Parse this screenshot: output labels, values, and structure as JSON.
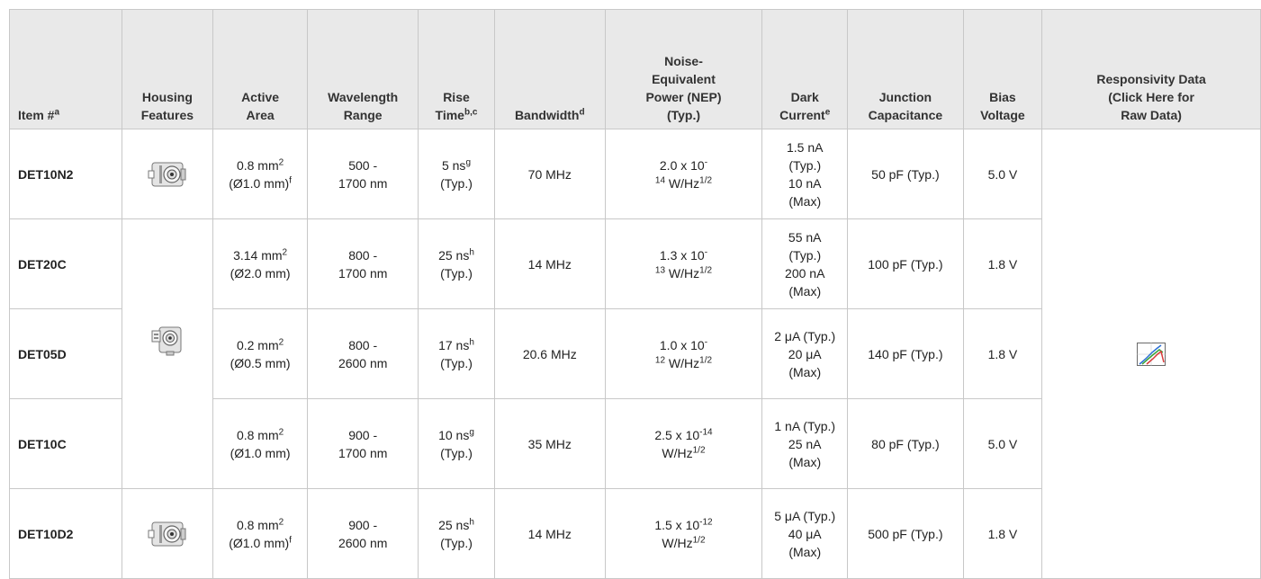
{
  "headers": {
    "item": {
      "text": "Item #",
      "sup": "a"
    },
    "housing": {
      "line1": "Housing",
      "line2": "Features"
    },
    "area": {
      "line1": "Active",
      "line2": "Area"
    },
    "wavelength": {
      "line1": "Wavelength",
      "line2": "Range"
    },
    "rise": {
      "line1": "Rise",
      "line2": "Time",
      "sup": "b,c"
    },
    "bandwidth": {
      "text": "Bandwidth",
      "sup": "d"
    },
    "nep": {
      "line1": "Noise-",
      "line2": "Equivalent",
      "line3": "Power (NEP)",
      "line4": "(Typ.)"
    },
    "dark": {
      "line1": "Dark",
      "line2": "Current",
      "sup": "e"
    },
    "capacitance": {
      "line1": "Junction",
      "line2": "Capacitance"
    },
    "bias": {
      "line1": "Bias",
      "line2": "Voltage"
    },
    "responsivity": {
      "line1": "Responsivity Data",
      "line2": "(Click Here for",
      "line3": "Raw Data)"
    }
  },
  "rows": [
    {
      "item": "DET10N2",
      "area_a": "0.8 mm",
      "area_a_sup": "2",
      "area_b": "(Ø1.0 mm)",
      "area_b_sup": "f",
      "wl_a": "500 -",
      "wl_b": "1700 nm",
      "rise_a": "5 ns",
      "rise_sup": "g",
      "rise_b": "(Typ.)",
      "bandwidth": "70 MHz",
      "nep_a": "2.0 x 10",
      "nep_a_sup": "-",
      "nep_b_pre": "14",
      "nep_b": " W/Hz",
      "nep_b_sup": "1/2",
      "dark_1": "1.5 nA",
      "dark_2": "(Typ.)",
      "dark_3": "10 nA",
      "dark_4": "(Max)",
      "capacitance": "50 pF (Typ.)",
      "bias": "5.0 V"
    },
    {
      "item": "DET20C",
      "area_a": "3.14 mm",
      "area_a_sup": "2",
      "area_b": "(Ø2.0 mm)",
      "wl_a": "800 -",
      "wl_b": "1700 nm",
      "rise_a": "25 ns",
      "rise_sup": "h",
      "rise_b": "(Typ.)",
      "bandwidth": "14 MHz",
      "nep_a": "1.3 x 10",
      "nep_a_sup": "-",
      "nep_b_pre": "13",
      "nep_b": " W/Hz",
      "nep_b_sup": "1/2",
      "dark_1": "55 nA",
      "dark_2": "(Typ.)",
      "dark_3": "200 nA",
      "dark_4": "(Max)",
      "capacitance": "100 pF (Typ.)",
      "bias": "1.8 V"
    },
    {
      "item": "DET05D",
      "area_a": "0.2 mm",
      "area_a_sup": "2",
      "area_b": "(Ø0.5 mm)",
      "wl_a": "800 -",
      "wl_b": "2600 nm",
      "rise_a": "17 ns",
      "rise_sup": "h",
      "rise_b": "(Typ.)",
      "bandwidth": "20.6 MHz",
      "nep_a": "1.0 x 10",
      "nep_a_sup": "-",
      "nep_b_pre": "12",
      "nep_b": " W/Hz",
      "nep_b_sup": "1/2",
      "dark_1": "2 μA (Typ.)",
      "dark_2": "20 μA",
      "dark_3": "(Max)",
      "capacitance": "140 pF (Typ.)",
      "bias": "1.8 V"
    },
    {
      "item": "DET10C",
      "area_a": "0.8 mm",
      "area_a_sup": "2",
      "area_b": "(Ø1.0 mm)",
      "wl_a": "900 -",
      "wl_b": "1700 nm",
      "rise_a": "10 ns",
      "rise_sup": "g",
      "rise_b": "(Typ.)",
      "bandwidth": "35 MHz",
      "nep_a": "2.5 x 10",
      "nep_a_sup": "-14",
      "nep_b": "W/Hz",
      "nep_b_sup": "1/2",
      "dark_1": "1 nA (Typ.)",
      "dark_2": "25 nA",
      "dark_3": "(Max)",
      "capacitance": "80 pF (Typ.)",
      "bias": "5.0 V"
    },
    {
      "item": "DET10D2",
      "area_a": "0.8 mm",
      "area_a_sup": "2",
      "area_b": "(Ø1.0 mm)",
      "area_b_sup": "f",
      "wl_a": "900 -",
      "wl_b": "2600 nm",
      "rise_a": "25 ns",
      "rise_sup": "h",
      "rise_b": "(Typ.)",
      "bandwidth": "14 MHz",
      "nep_a": "1.5 x 10",
      "nep_a_sup": "-12",
      "nep_b": "W/Hz",
      "nep_b_sup": "1/2",
      "dark_1": "5 μA (Typ.)",
      "dark_2": "40 μA",
      "dark_3": "(Max)",
      "capacitance": "500 pF (Typ.)",
      "bias": "1.8 V"
    }
  ],
  "icons": {
    "housing_small_a": "housing-small-icon",
    "housing_large": "housing-large-icon",
    "housing_small_b": "housing-small-icon",
    "responsivity": "responsivity-chart-icon"
  }
}
